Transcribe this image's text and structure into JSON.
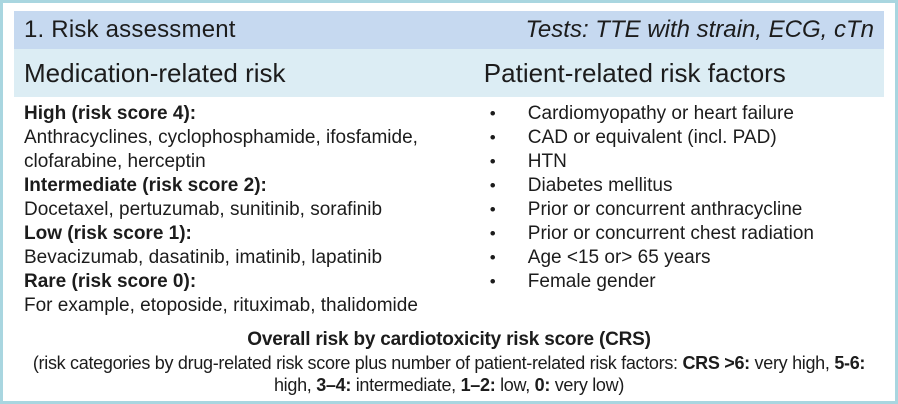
{
  "panel": {
    "title": "1. Risk assessment",
    "tests_label": "Tests: TTE with strain, ECG, cTn"
  },
  "columns": {
    "left": {
      "header": "Medication-related risk",
      "groups": [
        {
          "label": "High (risk score 4):",
          "drugs": "Anthracyclines, cyclophosphamide, ifosfamide, clofarabine, herceptin"
        },
        {
          "label": "Intermediate (risk score 2):",
          "drugs": "Docetaxel, pertuzumab, sunitinib, sorafinib"
        },
        {
          "label": "Low (risk score 1):",
          "drugs": "Bevacizumab, dasatinib, imatinib, lapatinib"
        },
        {
          "label": "Rare (risk score 0):",
          "drugs": "For example, etoposide, rituximab, thalidomide"
        }
      ]
    },
    "right": {
      "header": "Patient-related risk factors",
      "bullet_glyph": "•",
      "items": [
        "Cardiomyopathy or heart failure",
        "CAD or equivalent (incl. PAD)",
        "HTN",
        "Diabetes mellitus",
        "Prior or concurrent anthracycline",
        "Prior or concurrent chest radiation",
        "Age <15 or> 65 years",
        "Female gender"
      ]
    }
  },
  "footer": {
    "title": "Overall risk by cardiotoxicity risk score (CRS)",
    "segments": [
      {
        "text": "(risk categories by drug-related risk score plus number of patient-related risk factors: "
      },
      {
        "text": "CRS >6:"
      },
      {
        "text": " very high, "
      },
      {
        "text": "5-6:"
      },
      {
        "text": " high, "
      },
      {
        "text": "3–4:"
      },
      {
        "text": " intermediate, "
      },
      {
        "text": "1–2:"
      },
      {
        "text": " low, "
      },
      {
        "text": "0:"
      },
      {
        "text": " very low)"
      }
    ]
  },
  "colors": {
    "outer_border": "#a9d6e0",
    "header_band": "#c6d9f0",
    "subheader_band": "#dcedf4",
    "text": "#1c1c1c"
  }
}
